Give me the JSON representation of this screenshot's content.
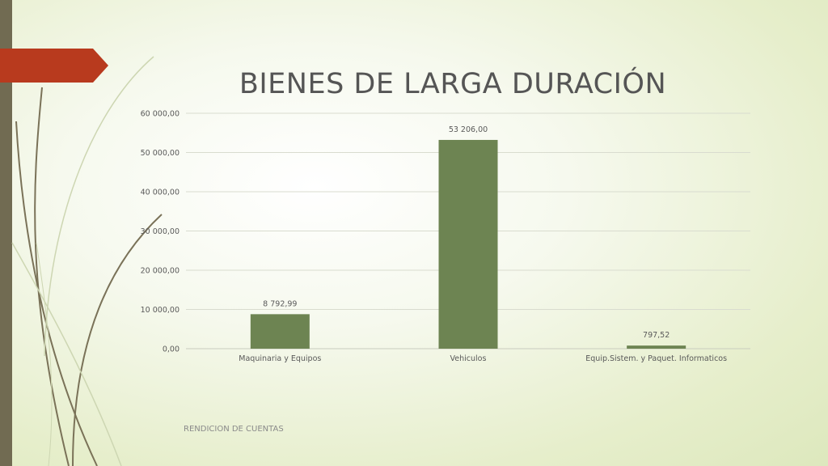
{
  "slide": {
    "title": "BIENES DE LARGA DURACIÓN",
    "footer": "RENDICION DE CUENTAS"
  },
  "colors": {
    "bar": "#6d8452",
    "accent_tab": "#b83a1e",
    "left_bar": "#716b52",
    "grid": "#d9dccf",
    "axis_text": "#595959"
  },
  "chart_data": {
    "type": "bar",
    "categories": [
      "Maquinaria y Equipos",
      "Vehiculos",
      "Equip.Sistem. y Paquet. Informaticos"
    ],
    "values": [
      8792.99,
      53206.0,
      797.52
    ],
    "data_labels": [
      "8 792,99",
      "53 206,00",
      "797,52"
    ],
    "y_ticks": [
      0,
      10000,
      20000,
      30000,
      40000,
      50000,
      60000
    ],
    "y_tick_labels": [
      "0,00",
      "10 000,00",
      "20 000,00",
      "30 000,00",
      "40 000,00",
      "50 000,00",
      "60 000,00"
    ],
    "ylim": [
      0,
      60000
    ],
    "grid": true,
    "legend": "none",
    "xlabel": "",
    "ylabel": ""
  }
}
